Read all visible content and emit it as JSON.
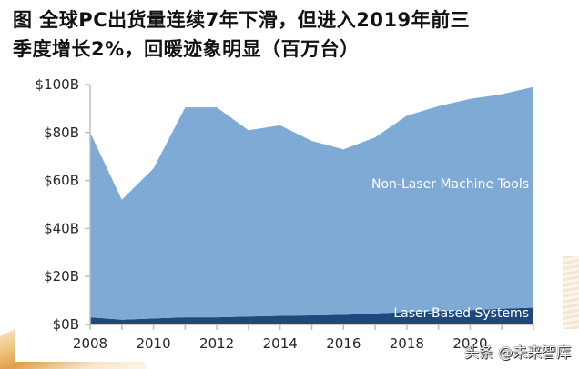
{
  "title": {
    "line1": "图  全球PC出货量连续7年下滑，但进入2019年前三",
    "line2": "季度增长2%，回暖迹象明显（百万台）"
  },
  "watermark": "头条 @未来智库",
  "chart_data": {
    "type": "area",
    "stacked": true,
    "title": "图 全球PC出货量连续7年下滑，但进入2019年前三季度增长2%，回暖迹象明显（百万台）",
    "xlabel": "",
    "ylabel": "",
    "x": [
      2008,
      2009,
      2010,
      2011,
      2012,
      2013,
      2014,
      2015,
      2016,
      2017,
      2018,
      2019,
      2020,
      2021,
      2022
    ],
    "x_tick_labels": [
      "2008",
      "2010",
      "2012",
      "2014",
      "2016",
      "2018",
      "2020"
    ],
    "y_tick_labels": [
      "$0B",
      "$20B",
      "$40B",
      "$60B",
      "$80B",
      "$100B"
    ],
    "y_ticks": [
      0,
      20,
      40,
      60,
      80,
      100
    ],
    "ylim": [
      0,
      100
    ],
    "grid": false,
    "legend": "inline labels",
    "series": [
      {
        "name": "Laser-Based Systems",
        "color": "#1f497d",
        "values": [
          3.0,
          2.0,
          2.5,
          3.0,
          3.0,
          3.3,
          3.6,
          3.8,
          4.0,
          4.6,
          5.2,
          5.6,
          6.0,
          6.5,
          7.0
        ]
      },
      {
        "name": "Non-Laser Machine Tools",
        "color": "#7faad5",
        "values": [
          77.0,
          50.0,
          62.5,
          87.5,
          87.5,
          77.7,
          79.4,
          72.7,
          69.0,
          73.4,
          81.8,
          85.4,
          88.0,
          89.5,
          92.0
        ]
      }
    ],
    "totals": [
      80.0,
      52.0,
      65.0,
      90.5,
      90.5,
      81.0,
      83.0,
      76.5,
      73.0,
      78.0,
      87.0,
      91.0,
      94.0,
      96.0,
      99.0
    ],
    "annotations": [
      "Non-Laser Machine Tools",
      "Laser-Based Systems"
    ]
  }
}
